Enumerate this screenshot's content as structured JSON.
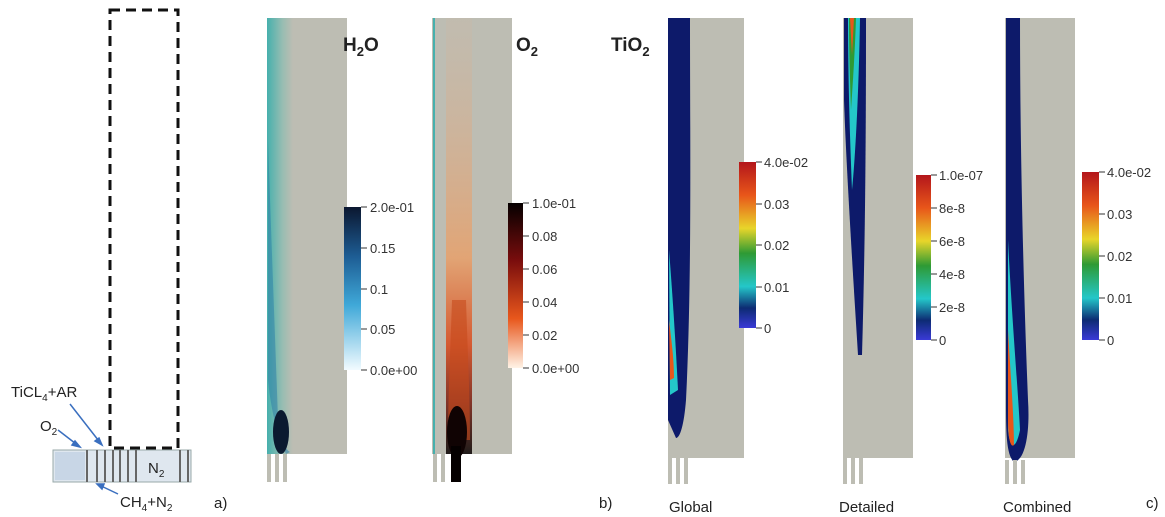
{
  "schematic": {
    "label_ticl4": "TiCL",
    "label_ticl4_sub": "4",
    "label_ticl4_suffix": "+AR",
    "label_o2": "O",
    "label_o2_sub": "2",
    "label_n2": "N",
    "label_n2_sub": "2",
    "label_ch4": "CH",
    "label_ch4_sub": "4",
    "label_ch4_mid": "+N",
    "label_ch4_sub2": "2"
  },
  "panel_labels": {
    "a": "a)",
    "b": "b)",
    "c": "c)"
  },
  "h2o": {
    "title_main": "H",
    "title_sub": "2",
    "title_tail": "O",
    "colorbar": [
      "2.0e-01",
      "0.15",
      "0.1",
      "0.05",
      "0.0e+00"
    ]
  },
  "o2": {
    "title_main": "O",
    "title_sub": "2",
    "colorbar": [
      "1.0e-01",
      "0.08",
      "0.06",
      "0.04",
      "0.02",
      "0.0e+00"
    ]
  },
  "tio2": {
    "title_main": "TiO",
    "title_sub": "2",
    "global": {
      "caption": "Global",
      "colorbar": [
        "4.0e-02",
        "0.03",
        "0.02",
        "0.01",
        "0"
      ]
    },
    "detailed": {
      "caption": "Detailed",
      "colorbar": [
        "1.0e-07",
        "8e-8",
        "6e-8",
        "4e-8",
        "2e-8",
        "0"
      ]
    },
    "combined": {
      "caption": "Combined",
      "colorbar": [
        "4.0e-02",
        "0.03",
        "0.02",
        "0.01",
        "0"
      ]
    }
  },
  "colors": {
    "domain_gray": "#bdbdb3",
    "teal": "#4bb3b0",
    "ink": "#222222"
  }
}
